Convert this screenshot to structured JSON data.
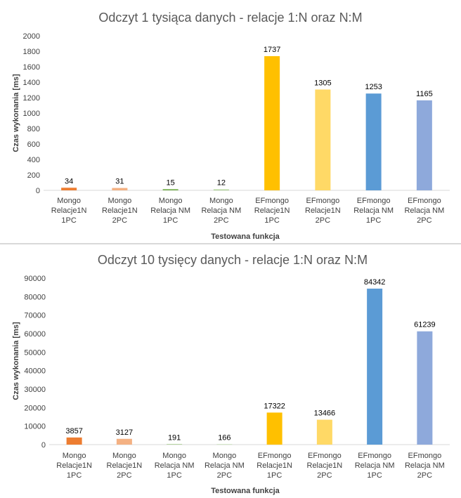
{
  "chart_data": [
    {
      "type": "bar",
      "title": "Odczyt 1 tysiąca danych - relacje 1:N oraz N:M",
      "xlabel": "Testowana funkcja",
      "ylabel": "Czas wykonania [ms]",
      "ylim": [
        0,
        2000
      ],
      "yticks": [
        0,
        200,
        400,
        600,
        800,
        1000,
        1200,
        1400,
        1600,
        1800,
        2000
      ],
      "grid": false,
      "categories": [
        [
          "Mongo",
          "Relacje1N",
          "1PC"
        ],
        [
          "Mongo",
          "Relacje1N",
          "2PC"
        ],
        [
          "Mongo",
          "Relacja NM",
          "1PC"
        ],
        [
          "Mongo",
          "Relacja NM",
          "2PC"
        ],
        [
          "EFmongo",
          "Relacje1N",
          "1PC"
        ],
        [
          "EFmongo",
          "Relacje1N",
          "2PC"
        ],
        [
          "EFmongo",
          "Relacja NM",
          "1PC"
        ],
        [
          "EFmongo",
          "Relacja NM",
          "2PC"
        ]
      ],
      "values": [
        34,
        31,
        15,
        12,
        1737,
        1305,
        1253,
        1165
      ],
      "colors": [
        "#ED7D31",
        "#F4B183",
        "#70AD47",
        "#A9D18E",
        "#FFC000",
        "#FFD966",
        "#5B9BD5",
        "#8EA9DB"
      ]
    },
    {
      "type": "bar",
      "title": "Odczyt 10 tysięcy danych - relacje 1:N oraz N:M",
      "xlabel": "Testowana funkcja",
      "ylabel": "Czas wykonania [ms]",
      "ylim": [
        0,
        90000
      ],
      "yticks": [
        0,
        10000,
        20000,
        30000,
        40000,
        50000,
        60000,
        70000,
        80000,
        90000
      ],
      "grid": false,
      "categories": [
        [
          "Mongo",
          "Relacje1N",
          "1PC"
        ],
        [
          "Mongo",
          "Relacje1N",
          "2PC"
        ],
        [
          "Mongo",
          "Relacja NM",
          "1PC"
        ],
        [
          "Mongo",
          "Relacja NM",
          "2PC"
        ],
        [
          "EFmongo",
          "Relacje1N",
          "1PC"
        ],
        [
          "EFmongo",
          "Relacje1N",
          "2PC"
        ],
        [
          "EFmongo",
          "Relacja NM",
          "1PC"
        ],
        [
          "EFmongo",
          "Relacja NM",
          "2PC"
        ]
      ],
      "values": [
        3857,
        3127,
        191,
        166,
        17322,
        13466,
        84342,
        61239
      ],
      "colors": [
        "#ED7D31",
        "#F4B183",
        "#70AD47",
        "#A9D18E",
        "#FFC000",
        "#FFD966",
        "#5B9BD5",
        "#8EA9DB"
      ]
    }
  ]
}
